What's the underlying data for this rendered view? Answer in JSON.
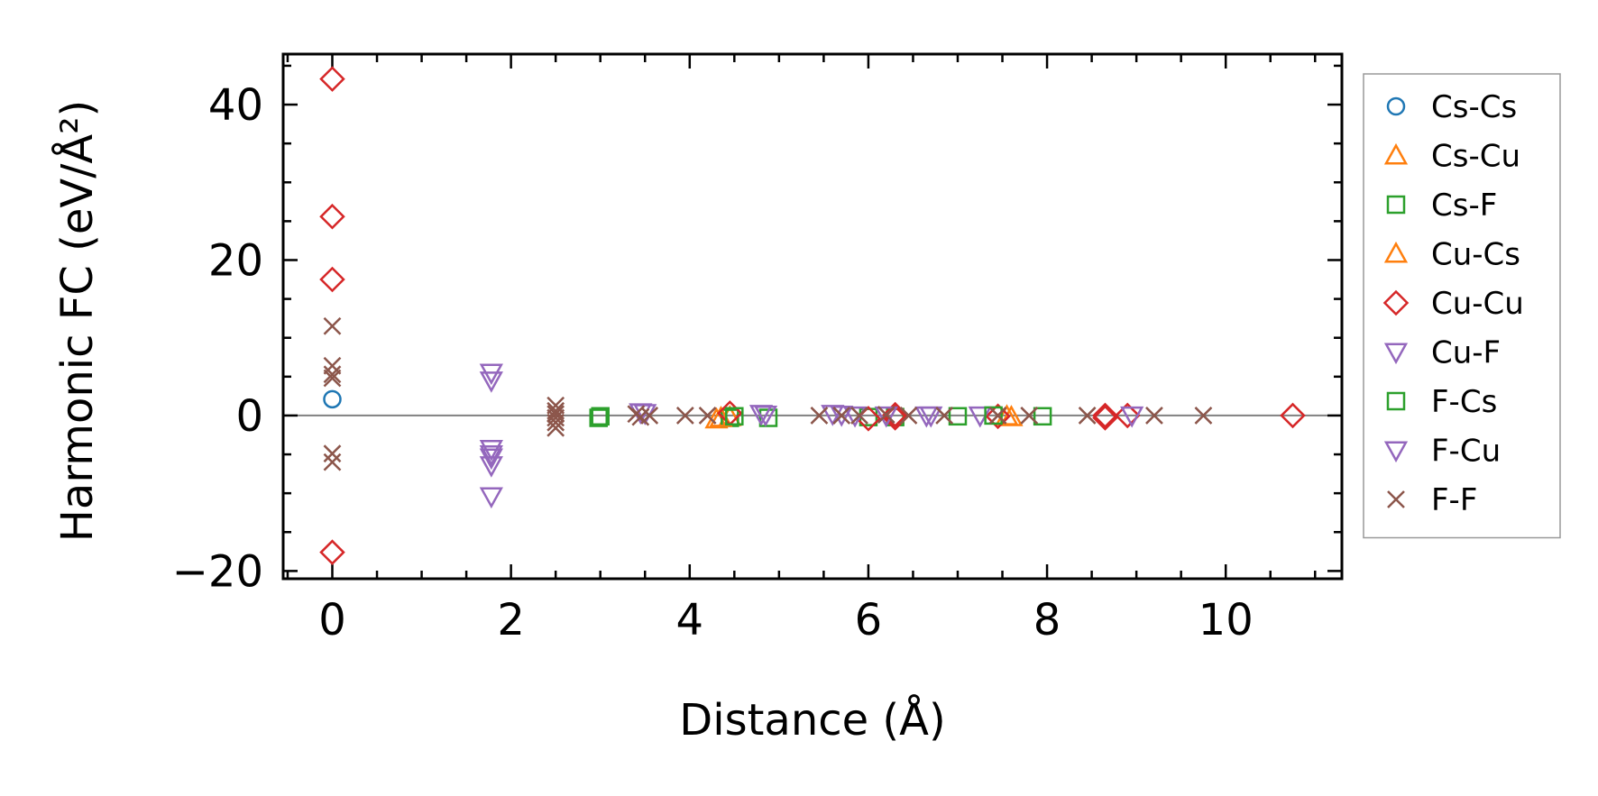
{
  "chart_data": {
    "type": "scatter",
    "xlabel": "Distance (Å)",
    "ylabel": "Harmonic FC (eV/Å²)",
    "xlim": [
      -0.55,
      11.3
    ],
    "ylim": [
      -21,
      46.5
    ],
    "xticks": [
      0,
      2,
      4,
      6,
      8,
      10
    ],
    "xtick_labels": [
      "0",
      "2",
      "4",
      "6",
      "8",
      "10"
    ],
    "yticks": [
      -20,
      0,
      20,
      40
    ],
    "ytick_labels": [
      "−20",
      "0",
      "20",
      "40"
    ],
    "x_minor_step": 0.5,
    "y_minor_step": 5,
    "grid": false,
    "zero_line": true,
    "legend_position": "outside-right",
    "series": [
      {
        "name": "Cs-Cs",
        "marker": "circle",
        "color": "#1f77b4",
        "points": [
          [
            0,
            2.1
          ]
        ]
      },
      {
        "name": "Cs-Cu",
        "marker": "triangle-up",
        "color": "#ff7f0e",
        "points": [
          [
            4.3,
            -0.5
          ],
          [
            4.45,
            -0.2
          ],
          [
            7.6,
            -0.2
          ]
        ]
      },
      {
        "name": "Cs-F",
        "marker": "square",
        "color": "#2ca02c",
        "points": [
          [
            2.98,
            -0.3
          ],
          [
            4.45,
            -0.3
          ],
          [
            4.88,
            -0.3
          ],
          [
            6.0,
            -0.2
          ],
          [
            6.3,
            -0.2
          ],
          [
            7.0,
            -0.1
          ],
          [
            7.95,
            -0.1
          ]
        ]
      },
      {
        "name": "Cu-Cs",
        "marker": "triangle-up",
        "color": "#ff7f0e",
        "points": [
          [
            4.35,
            -0.3
          ],
          [
            7.55,
            -0.1
          ]
        ]
      },
      {
        "name": "Cu-Cu",
        "marker": "diamond",
        "color": "#d62728",
        "points": [
          [
            0,
            43.3
          ],
          [
            0,
            25.6
          ],
          [
            0,
            17.5
          ],
          [
            0,
            -17.6
          ],
          [
            4.45,
            0.3
          ],
          [
            6.0,
            -0.4
          ],
          [
            6.3,
            0.1
          ],
          [
            6.3,
            -0.3
          ],
          [
            7.45,
            -0.1
          ],
          [
            8.65,
            0.0
          ],
          [
            8.65,
            -0.3
          ],
          [
            8.9,
            0.0
          ],
          [
            10.75,
            0.0
          ]
        ]
      },
      {
        "name": "Cu-F",
        "marker": "triangle-down",
        "color": "#9467bd",
        "points": [
          [
            1.78,
            5.5
          ],
          [
            1.78,
            4.5
          ],
          [
            1.78,
            -4.3
          ],
          [
            1.78,
            -5.4
          ],
          [
            1.78,
            -6.4
          ],
          [
            1.78,
            -10.4
          ],
          [
            3.45,
            0.4
          ],
          [
            4.8,
            0.2
          ],
          [
            5.7,
            0.1
          ],
          [
            6.65,
            0.0
          ],
          [
            7.25,
            0.0
          ],
          [
            8.95,
            0.0
          ]
        ]
      },
      {
        "name": "F-Cs",
        "marker": "square",
        "color": "#2ca02c",
        "points": [
          [
            3.0,
            -0.1
          ],
          [
            4.5,
            -0.1
          ],
          [
            7.4,
            0.0
          ]
        ]
      },
      {
        "name": "F-Cu",
        "marker": "triangle-down",
        "color": "#9467bd",
        "points": [
          [
            1.78,
            -5.0
          ],
          [
            3.5,
            0.3
          ],
          [
            4.85,
            0.1
          ],
          [
            5.6,
            0.2
          ],
          [
            5.85,
            0.0
          ],
          [
            6.2,
            0.0
          ],
          [
            6.7,
            0.0
          ]
        ]
      },
      {
        "name": "F-F",
        "marker": "x",
        "color": "#8c564b",
        "points": [
          [
            0,
            11.5
          ],
          [
            0,
            6.4
          ],
          [
            0,
            5.3
          ],
          [
            0,
            4.8
          ],
          [
            0,
            -4.9
          ],
          [
            0,
            -6.0
          ],
          [
            2.5,
            1.3
          ],
          [
            2.5,
            0.6
          ],
          [
            2.5,
            0.2
          ],
          [
            2.5,
            -0.3
          ],
          [
            2.5,
            -0.9
          ],
          [
            2.5,
            -1.6
          ],
          [
            3.4,
            0.2
          ],
          [
            3.45,
            -0.2
          ],
          [
            3.55,
            0.0
          ],
          [
            3.95,
            0.0
          ],
          [
            4.2,
            0.0
          ],
          [
            5.45,
            0.0
          ],
          [
            5.7,
            0.0
          ],
          [
            5.9,
            0.0
          ],
          [
            6.2,
            0.1
          ],
          [
            6.45,
            0.0
          ],
          [
            6.85,
            0.0
          ],
          [
            7.45,
            0.0
          ],
          [
            7.8,
            0.0
          ],
          [
            8.45,
            0.0
          ],
          [
            9.2,
            0.0
          ],
          [
            9.75,
            0.0
          ]
        ]
      }
    ]
  }
}
